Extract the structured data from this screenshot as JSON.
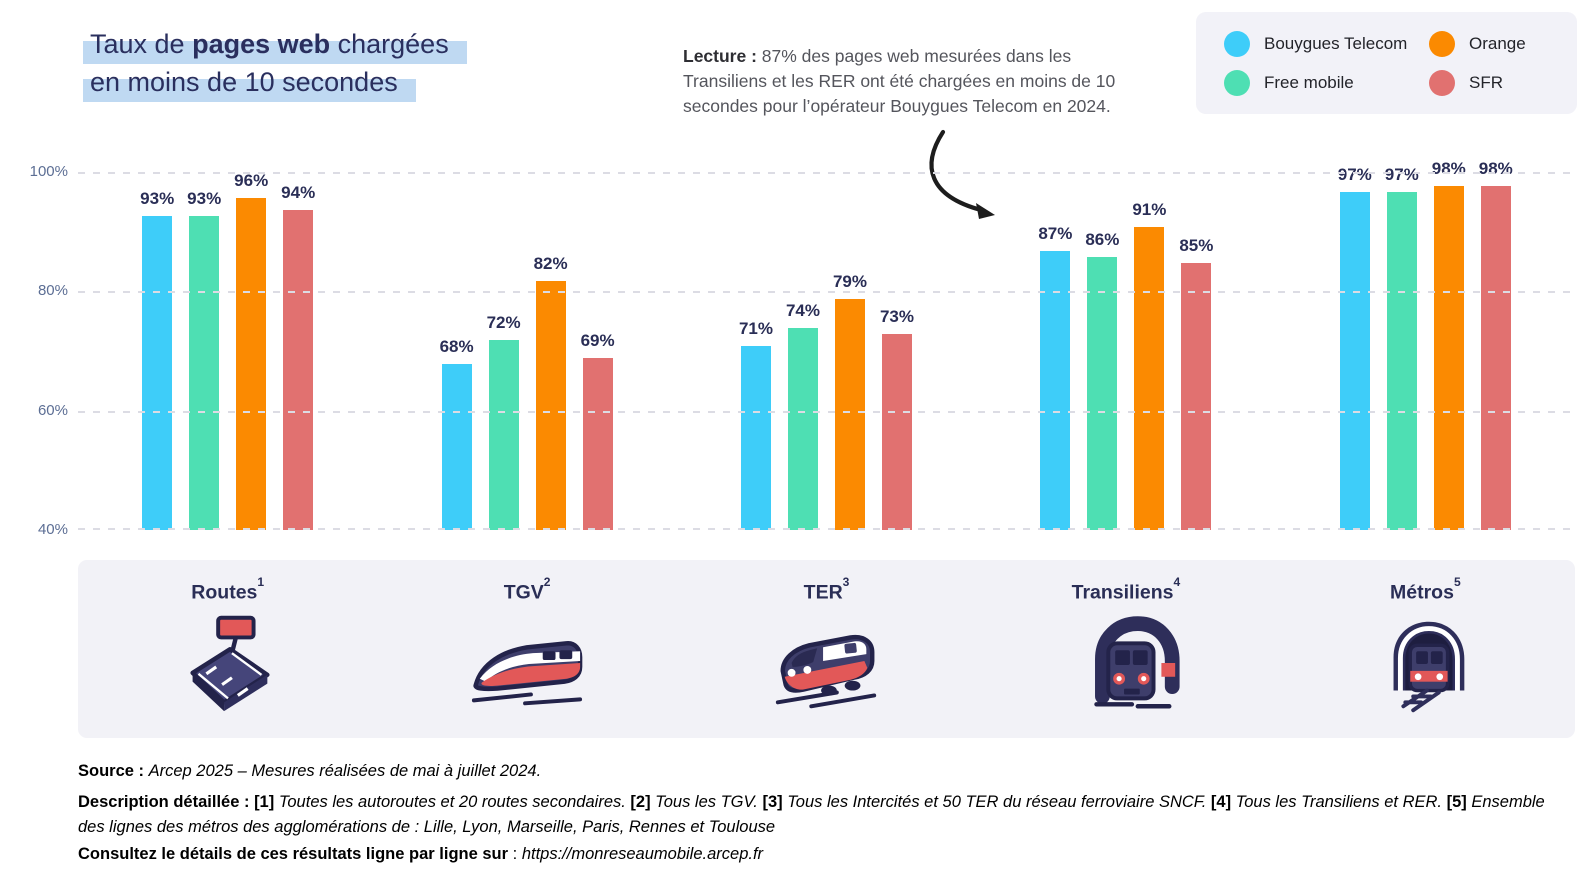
{
  "title": {
    "line1_pre": "Taux de ",
    "line1_bold": "pages web",
    "line1_post": " chargées",
    "line2": "en moins de 10 secondes"
  },
  "lecture": {
    "label": "Lecture :",
    "text": " 87% des pages web mesurées dans les Transiliens et les RER ont été chargées en moins de 10 secondes pour l’opérateur Bouygues Telecom en 2024."
  },
  "legend": {
    "items": [
      {
        "name": "Bouygues Telecom",
        "color": "#3ECDF9"
      },
      {
        "name": "Orange",
        "color": "#FB8A01"
      },
      {
        "name": "Free mobile",
        "color": "#4EDFB3"
      },
      {
        "name": "SFR",
        "color": "#E17170"
      }
    ]
  },
  "chart_data": {
    "type": "bar",
    "title": "Taux de pages web chargées en moins de 10 secondes",
    "categories": [
      "Routes",
      "TGV",
      "TER",
      "Transiliens",
      "Métros"
    ],
    "category_superscripts": [
      "1",
      "2",
      "3",
      "4",
      "5"
    ],
    "series": [
      {
        "name": "Bouygues Telecom",
        "color": "#3ECDF9",
        "values": [
          93,
          68,
          71,
          87,
          97
        ]
      },
      {
        "name": "Free mobile",
        "color": "#4EDFB3",
        "values": [
          93,
          72,
          74,
          86,
          97
        ]
      },
      {
        "name": "Orange",
        "color": "#FB8A01",
        "values": [
          96,
          82,
          79,
          91,
          98
        ]
      },
      {
        "name": "SFR",
        "color": "#E17170",
        "values": [
          94,
          69,
          73,
          85,
          98
        ]
      }
    ],
    "value_suffix": "%",
    "ylim": [
      40,
      100
    ],
    "yticks": [
      "100%",
      "80%",
      "60%",
      "40%"
    ],
    "grid": "dashed-horizontal",
    "legend_position": "top-right",
    "xlabel": "",
    "ylabel": ""
  },
  "footer": {
    "source_line": [
      {
        "t": "Source",
        "b": true
      },
      {
        "t": " : ",
        "b": true
      },
      {
        "t": "Arcep 2025 – Mesures réalisées de mai à juillet 2024.",
        "i": true
      }
    ],
    "description_line": [
      {
        "t": "Description détaillée",
        "b": true
      },
      {
        "t": " : ",
        "b": true
      },
      {
        "t": "[1] ",
        "b": true
      },
      {
        "t": "Toutes les autoroutes et 20 routes secondaires. ",
        "i": true
      },
      {
        "t": "[2] ",
        "b": true
      },
      {
        "t": "Tous les TGV. ",
        "i": true
      },
      {
        "t": "[3] ",
        "b": true
      },
      {
        "t": "Tous les Intercités et 50 TER du réseau ferroviaire SNCF. ",
        "i": true
      },
      {
        "t": "[4] ",
        "b": true
      },
      {
        "t": "Tous les Transiliens et RER. ",
        "i": true
      },
      {
        "t": "[5] ",
        "b": true
      },
      {
        "t": "Ensemble des lignes des métros des agglomérations de : Lille, Lyon, Marseille, Paris, Rennes et Toulouse",
        "i": true
      }
    ],
    "consult_line": [
      {
        "t": "Consultez le détails de ces résultats ligne par ligne sur",
        "b": true
      },
      {
        "t": " : ",
        "b": false
      },
      {
        "t": "https://monreseaumobile.arcep.fr",
        "i": true,
        "link": true
      }
    ]
  }
}
